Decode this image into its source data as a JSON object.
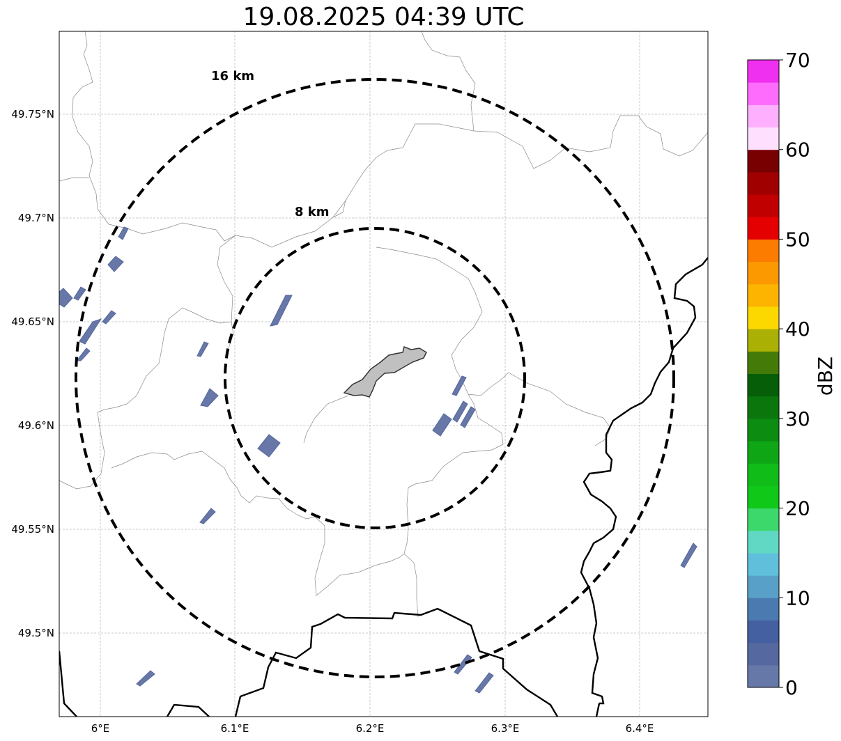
{
  "title": "19.08.2025 04:39 UTC",
  "lat_labels": [
    "49.75°N",
    "49.7°N",
    "49.65°N",
    "49.6°N",
    "49.55°N",
    "49.5°N"
  ],
  "lon_labels": [
    "6°E",
    "6.1°E",
    "6.2°E",
    "6.3°E",
    "6.4°E"
  ],
  "range_rings": [
    {
      "label": "16 km",
      "radius_km": 16
    },
    {
      "label": "8 km",
      "radius_km": 8
    }
  ],
  "colorbar": {
    "unit": "dBZ",
    "ticks": [
      "0",
      "10",
      "20",
      "30",
      "40",
      "50",
      "60",
      "70"
    ],
    "min": 0,
    "max": 70,
    "step": 2.5,
    "colors": [
      "#6678a8",
      "#5568a0",
      "#4560a0",
      "#4a7ab0",
      "#58a0c8",
      "#60c0dc",
      "#60d8c4",
      "#3cd86c",
      "#10c818",
      "#10bc18",
      "#0ea614",
      "#0c8c10",
      "#0a760c",
      "#065e08",
      "#447a08",
      "#aab004",
      "#fcd800",
      "#fcb400",
      "#fc9800",
      "#fc7c00",
      "#e40000",
      "#c00000",
      "#a00000",
      "#780000",
      "#fee0fe",
      "#feb0fe",
      "#fe6cfe",
      "#f030f0"
    ]
  },
  "colors": {
    "echo": "#6677a8",
    "city": "#c0c0c0",
    "ring": "#000000",
    "border": "#000000",
    "admin_line": "#8a8a8a",
    "grid": "#bbbbbb"
  }
}
